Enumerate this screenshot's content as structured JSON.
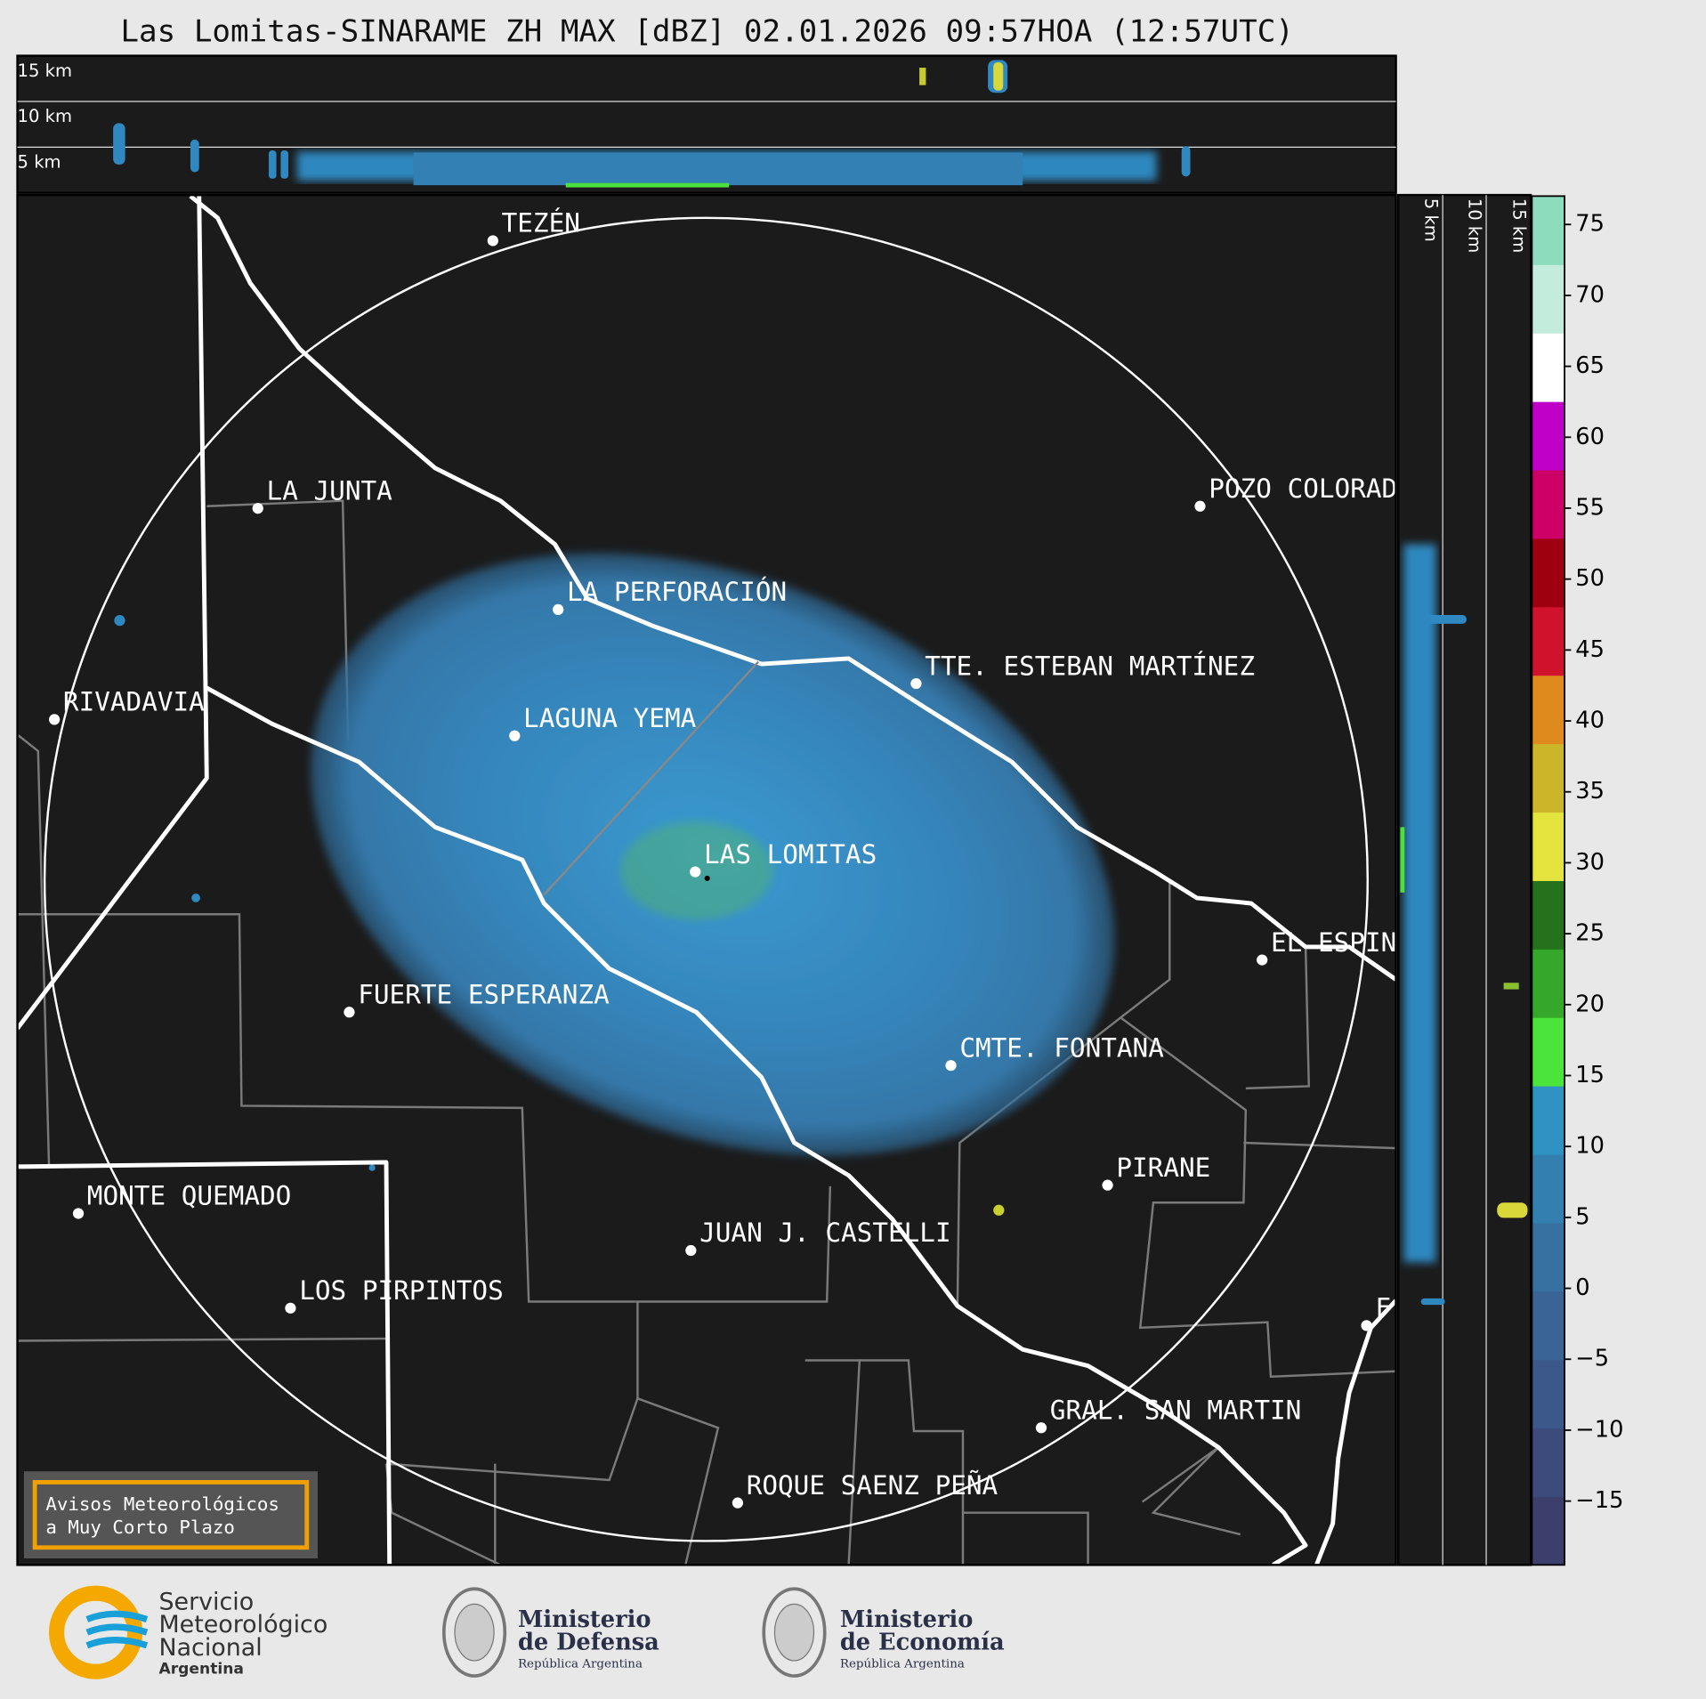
{
  "header": {
    "title": "Las Lomitas-SINARAME ZH MAX [dBZ] 02.01.2026 09:57HOA (12:57UTC)"
  },
  "top_panel": {
    "height_labels": [
      "15 km",
      "10 km",
      "5 km"
    ]
  },
  "side_panel": {
    "height_labels": [
      "5 km",
      "10 km",
      "15 km"
    ]
  },
  "map": {
    "cities": [
      "TEZÉN",
      "LA JUNTA",
      "POZO COLORAD",
      "LA PERFORACIÓN",
      "TTE. ESTEBAN MARTÍNEZ",
      "RIVADAVIA",
      "LAGUNA YEMA",
      "LAS LOMITAS",
      "EL ESPIN",
      "FUERTE ESPERANZA",
      "CMTE. FONTANA",
      "PIRANE",
      "MONTE QUEMADO",
      "JUAN J. CASTELLI",
      "LOS PIRPINTOS",
      "GRAL. SAN MARTIN",
      "ROQUE SAENZ PEÑA",
      "F"
    ],
    "notice": [
      "Avisos Meteorológicos",
      "a Muy Corto Plazo"
    ]
  },
  "colorbar": {
    "lim": [
      -19.5,
      77
    ],
    "ticks": [
      -15,
      -10,
      -5,
      0,
      5,
      10,
      15,
      20,
      25,
      30,
      35,
      40,
      45,
      50,
      55,
      60,
      65,
      70,
      75
    ],
    "tick_labels": [
      "−15",
      "−10",
      "−5",
      "0",
      "5",
      "10",
      "15",
      "20",
      "25",
      "30",
      "35",
      "40",
      "45",
      "50",
      "55",
      "60",
      "65",
      "70",
      "75"
    ],
    "colors": [
      "#3c3f6c",
      "#3d4b7c",
      "#3c578a",
      "#3a6496",
      "#3671a2",
      "#3380b0",
      "#2f92c2",
      "#4be43a",
      "#35a82c",
      "#24721c",
      "#e4e43e",
      "#cbb62a",
      "#de8a1c",
      "#d0122c",
      "#9e0010",
      "#cc0066",
      "#c000c8",
      "#ffffff",
      "#c4ecdc",
      "#8edcbe"
    ]
  },
  "footer": {
    "smn": [
      "Servicio",
      "Meteorológico",
      "Nacional",
      "Argentina"
    ],
    "defensa": [
      "Ministerio",
      "de Defensa",
      "República Argentina"
    ],
    "economia": [
      "Ministerio",
      "de Economía",
      "República Argentina"
    ]
  }
}
